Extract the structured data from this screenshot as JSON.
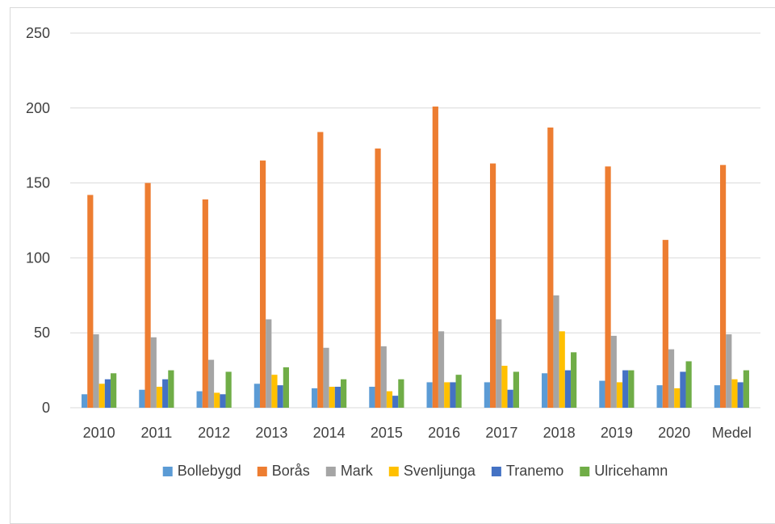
{
  "chart_data": {
    "type": "bar",
    "title": "",
    "xlabel": "",
    "ylabel": "",
    "ylim": [
      0,
      250
    ],
    "yticks": [
      0,
      50,
      100,
      150,
      200,
      250
    ],
    "grid": true,
    "legend_position": "bottom",
    "categories": [
      "2010",
      "2011",
      "2012",
      "2013",
      "2014",
      "2015",
      "2016",
      "2017",
      "2018",
      "2019",
      "2020",
      "Medel"
    ],
    "series": [
      {
        "name": "Bollebygd",
        "color": "#5B9BD5",
        "values": [
          9,
          12,
          11,
          16,
          13,
          14,
          17,
          17,
          23,
          18,
          15,
          15
        ]
      },
      {
        "name": "Borås",
        "color": "#ED7D31",
        "values": [
          142,
          150,
          139,
          165,
          184,
          173,
          201,
          163,
          187,
          161,
          112,
          162
        ]
      },
      {
        "name": "Mark",
        "color": "#A5A5A5",
        "values": [
          49,
          47,
          32,
          59,
          40,
          41,
          51,
          59,
          75,
          48,
          39,
          49
        ]
      },
      {
        "name": "Svenljunga",
        "color": "#FFC000",
        "values": [
          16,
          14,
          10,
          22,
          14,
          11,
          17,
          28,
          51,
          17,
          13,
          19
        ]
      },
      {
        "name": "Tranemo",
        "color": "#4472C4",
        "values": [
          19,
          19,
          9,
          15,
          14,
          8,
          17,
          12,
          25,
          25,
          24,
          17
        ]
      },
      {
        "name": "Ulricehamn",
        "color": "#70AD47",
        "values": [
          23,
          25,
          24,
          27,
          19,
          19,
          22,
          24,
          37,
          25,
          31,
          25
        ]
      }
    ]
  }
}
